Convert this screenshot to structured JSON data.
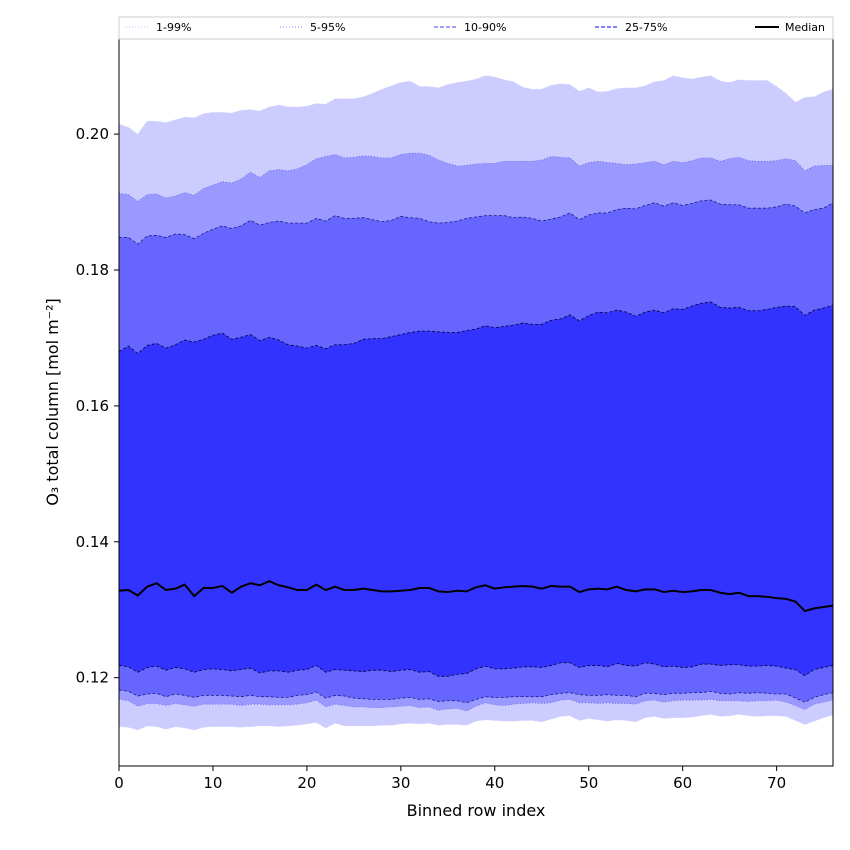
{
  "chart_data": {
    "type": "area",
    "title": "",
    "xlabel": "Binned row index",
    "ylabel": "O₃ total column [mol m⁻²]",
    "xlim": [
      0,
      76
    ],
    "ylim": [
      0.107,
      0.214
    ],
    "xticks": [
      0,
      10,
      20,
      30,
      40,
      50,
      60,
      70
    ],
    "yticks": [
      0.12,
      0.14,
      0.16,
      0.18,
      0.2
    ],
    "ytick_labels": [
      "0.12",
      "0.14",
      "0.16",
      "0.18",
      "0.20"
    ],
    "grid": false,
    "legend_position": "top",
    "legend": [
      {
        "label": "1-99%",
        "color": "#ccccff",
        "style": "dotted"
      },
      {
        "label": "5-95%",
        "color": "#9999ff",
        "style": "dotted"
      },
      {
        "label": "10-90%",
        "color": "#6666ff",
        "style": "dashed"
      },
      {
        "label": "25-75%",
        "color": "#3333ff",
        "style": "dashed"
      },
      {
        "label": "Median",
        "color": "#000000",
        "style": "solid"
      }
    ],
    "x": [
      0,
      1,
      2,
      3,
      4,
      5,
      6,
      7,
      8,
      9,
      10,
      11,
      12,
      13,
      14,
      15,
      16,
      17,
      18,
      19,
      20,
      21,
      22,
      23,
      24,
      25,
      26,
      27,
      28,
      29,
      30,
      31,
      32,
      33,
      34,
      35,
      36,
      37,
      38,
      39,
      40,
      41,
      42,
      43,
      44,
      45,
      46,
      47,
      48,
      49,
      50,
      51,
      52,
      53,
      54,
      55,
      56,
      57,
      58,
      59,
      60,
      61,
      62,
      63,
      64,
      65,
      66,
      67,
      68,
      69,
      70,
      71,
      72,
      73,
      74,
      75,
      76
    ],
    "bands": [
      {
        "name": "1-99%",
        "fill": "#ccccff",
        "upper": [
          0.2015,
          0.201,
          0.2,
          0.2019,
          0.2019,
          0.2017,
          0.2021,
          0.2025,
          0.2024,
          0.203,
          0.2032,
          0.2032,
          0.2031,
          0.2035,
          0.2036,
          0.2034,
          0.204,
          0.2043,
          0.204,
          0.204,
          0.2041,
          0.2045,
          0.2044,
          0.2052,
          0.2052,
          0.2052,
          0.2055,
          0.206,
          0.2066,
          0.2071,
          0.2076,
          0.2078,
          0.207,
          0.207,
          0.2068,
          0.2073,
          0.2076,
          0.2078,
          0.2081,
          0.2086,
          0.2084,
          0.208,
          0.2077,
          0.2069,
          0.2066,
          0.2066,
          0.2072,
          0.2074,
          0.2073,
          0.2063,
          0.2068,
          0.2062,
          0.2063,
          0.2067,
          0.2068,
          0.2068,
          0.2071,
          0.2077,
          0.2079,
          0.2086,
          0.2083,
          0.2081,
          0.2084,
          0.2086,
          0.2078,
          0.2076,
          0.208,
          0.2079,
          0.2079,
          0.2079,
          0.207,
          0.206,
          0.2047,
          0.2054,
          0.2055,
          0.2062,
          0.2066
        ],
        "lower": [
          0.1128,
          0.1127,
          0.1123,
          0.1129,
          0.1128,
          0.1124,
          0.1128,
          0.1126,
          0.1123,
          0.1127,
          0.1128,
          0.1128,
          0.1128,
          0.1127,
          0.1128,
          0.1129,
          0.1129,
          0.1128,
          0.1129,
          0.113,
          0.1132,
          0.1134,
          0.1126,
          0.1133,
          0.1129,
          0.1129,
          0.1129,
          0.1129,
          0.113,
          0.113,
          0.1132,
          0.1133,
          0.1132,
          0.1133,
          0.113,
          0.1131,
          0.1131,
          0.113,
          0.1136,
          0.1138,
          0.1137,
          0.1136,
          0.1136,
          0.1137,
          0.1137,
          0.1135,
          0.1139,
          0.1143,
          0.1144,
          0.1137,
          0.114,
          0.1138,
          0.1136,
          0.1138,
          0.1137,
          0.1135,
          0.1141,
          0.1143,
          0.114,
          0.1141,
          0.1141,
          0.1142,
          0.1144,
          0.1146,
          0.1143,
          0.1144,
          0.1146,
          0.1144,
          0.1143,
          0.1144,
          0.1144,
          0.1143,
          0.1137,
          0.1131,
          0.1136,
          0.1141,
          0.1145
        ]
      },
      {
        "name": "5-95%",
        "fill": "#9999ff",
        "upper": [
          0.1913,
          0.1911,
          0.1901,
          0.1911,
          0.1912,
          0.1906,
          0.1909,
          0.1914,
          0.191,
          0.192,
          0.1925,
          0.193,
          0.1928,
          0.1934,
          0.1944,
          0.1936,
          0.1946,
          0.1948,
          0.1946,
          0.1949,
          0.1955,
          0.1964,
          0.1967,
          0.197,
          0.1965,
          0.1966,
          0.1968,
          0.1967,
          0.1965,
          0.1965,
          0.197,
          0.1972,
          0.1972,
          0.1969,
          0.1962,
          0.1957,
          0.1953,
          0.1954,
          0.1956,
          0.1957,
          0.1957,
          0.196,
          0.196,
          0.196,
          0.196,
          0.1962,
          0.1967,
          0.1966,
          0.1965,
          0.1953,
          0.1958,
          0.196,
          0.1958,
          0.1957,
          0.1955,
          0.1956,
          0.1958,
          0.196,
          0.1955,
          0.196,
          0.1958,
          0.1961,
          0.1965,
          0.1965,
          0.196,
          0.1964,
          0.1966,
          0.1961,
          0.196,
          0.196,
          0.1961,
          0.1964,
          0.1961,
          0.1946,
          0.1953,
          0.1954,
          0.1954
        ],
        "lower": [
          0.1168,
          0.1166,
          0.1158,
          0.1162,
          0.1162,
          0.1159,
          0.1162,
          0.116,
          0.1158,
          0.1161,
          0.1161,
          0.1161,
          0.1161,
          0.1159,
          0.1161,
          0.1161,
          0.116,
          0.116,
          0.116,
          0.1161,
          0.1163,
          0.1167,
          0.1157,
          0.1161,
          0.1159,
          0.1157,
          0.1157,
          0.1156,
          0.1156,
          0.1157,
          0.1158,
          0.1159,
          0.1156,
          0.1157,
          0.1152,
          0.1154,
          0.1155,
          0.1151,
          0.1158,
          0.1163,
          0.116,
          0.1159,
          0.1161,
          0.1162,
          0.1163,
          0.1162,
          0.1163,
          0.1167,
          0.1168,
          0.1163,
          0.1163,
          0.1162,
          0.1163,
          0.1162,
          0.1162,
          0.1161,
          0.1166,
          0.1167,
          0.1164,
          0.1166,
          0.1167,
          0.1167,
          0.1167,
          0.1168,
          0.1166,
          0.1166,
          0.1166,
          0.1165,
          0.1166,
          0.1166,
          0.1167,
          0.1164,
          0.1159,
          0.1153,
          0.1161,
          0.1164,
          0.1167
        ]
      },
      {
        "name": "10-90%",
        "fill": "#6666ff",
        "upper": [
          0.1848,
          0.1848,
          0.1838,
          0.185,
          0.1851,
          0.1848,
          0.1853,
          0.1852,
          0.1846,
          0.1854,
          0.186,
          0.1865,
          0.1861,
          0.1865,
          0.1873,
          0.1866,
          0.187,
          0.1872,
          0.1869,
          0.1869,
          0.1869,
          0.1876,
          0.1872,
          0.188,
          0.1876,
          0.1876,
          0.1877,
          0.1874,
          0.1871,
          0.1873,
          0.1879,
          0.1877,
          0.1876,
          0.1871,
          0.1869,
          0.187,
          0.1872,
          0.1876,
          0.1878,
          0.188,
          0.188,
          0.188,
          0.1877,
          0.1878,
          0.1876,
          0.1872,
          0.1875,
          0.1878,
          0.1884,
          0.1874,
          0.1881,
          0.1884,
          0.1884,
          0.1889,
          0.1891,
          0.189,
          0.1895,
          0.1899,
          0.1894,
          0.1899,
          0.1895,
          0.1898,
          0.1902,
          0.1903,
          0.1897,
          0.1896,
          0.1896,
          0.1891,
          0.1891,
          0.1891,
          0.1893,
          0.1897,
          0.1894,
          0.1884,
          0.1889,
          0.1891,
          0.1899
        ],
        "lower": [
          0.1182,
          0.118,
          0.1173,
          0.1176,
          0.1177,
          0.1172,
          0.1176,
          0.1174,
          0.1171,
          0.1174,
          0.1174,
          0.1174,
          0.1173,
          0.1172,
          0.1174,
          0.1172,
          0.1172,
          0.1171,
          0.1171,
          0.1174,
          0.1175,
          0.1179,
          0.117,
          0.1174,
          0.1173,
          0.117,
          0.1169,
          0.1168,
          0.1168,
          0.1168,
          0.117,
          0.1171,
          0.1168,
          0.1169,
          0.1165,
          0.1166,
          0.1166,
          0.1163,
          0.1168,
          0.1172,
          0.1171,
          0.1171,
          0.1172,
          0.1172,
          0.1172,
          0.1172,
          0.1175,
          0.1177,
          0.1178,
          0.1175,
          0.1174,
          0.1174,
          0.1175,
          0.1174,
          0.1174,
          0.1172,
          0.1177,
          0.1177,
          0.1175,
          0.1177,
          0.1177,
          0.1178,
          0.1178,
          0.118,
          0.1177,
          0.1176,
          0.1178,
          0.1177,
          0.1178,
          0.1177,
          0.1176,
          0.1176,
          0.117,
          0.1164,
          0.1171,
          0.1175,
          0.1178
        ]
      },
      {
        "name": "25-75%",
        "fill": "#3333ff",
        "upper": [
          0.168,
          0.1688,
          0.1677,
          0.1689,
          0.1692,
          0.1685,
          0.169,
          0.1697,
          0.1694,
          0.1698,
          0.1704,
          0.1707,
          0.1698,
          0.1701,
          0.1705,
          0.1696,
          0.1701,
          0.1697,
          0.169,
          0.1688,
          0.1685,
          0.1689,
          0.1684,
          0.169,
          0.169,
          0.1692,
          0.1698,
          0.1699,
          0.1699,
          0.1702,
          0.1705,
          0.1708,
          0.171,
          0.171,
          0.1709,
          0.1708,
          0.1708,
          0.1711,
          0.1713,
          0.1718,
          0.1715,
          0.1717,
          0.1719,
          0.1722,
          0.172,
          0.172,
          0.1726,
          0.1728,
          0.1734,
          0.1725,
          0.1733,
          0.1738,
          0.1737,
          0.1741,
          0.1738,
          0.1732,
          0.1738,
          0.1741,
          0.1737,
          0.1743,
          0.1742,
          0.1747,
          0.1751,
          0.1753,
          0.1745,
          0.1744,
          0.1745,
          0.174,
          0.174,
          0.1742,
          0.1745,
          0.1747,
          0.1746,
          0.1733,
          0.1741,
          0.1744,
          0.1748
        ],
        "lower": [
          0.1218,
          0.1216,
          0.1208,
          0.1215,
          0.1217,
          0.1211,
          0.1215,
          0.1213,
          0.1208,
          0.1212,
          0.1213,
          0.1212,
          0.121,
          0.1212,
          0.1214,
          0.1207,
          0.121,
          0.121,
          0.1208,
          0.1211,
          0.1212,
          0.1218,
          0.1208,
          0.1212,
          0.1211,
          0.121,
          0.1209,
          0.1211,
          0.1211,
          0.1209,
          0.1211,
          0.1212,
          0.1208,
          0.1209,
          0.1202,
          0.1202,
          0.1205,
          0.1206,
          0.1213,
          0.1217,
          0.1213,
          0.1213,
          0.1214,
          0.1216,
          0.1216,
          0.1215,
          0.1218,
          0.1222,
          0.1222,
          0.1215,
          0.1218,
          0.1218,
          0.1216,
          0.1221,
          0.1218,
          0.1217,
          0.1222,
          0.122,
          0.1216,
          0.1217,
          0.1215,
          0.1216,
          0.122,
          0.122,
          0.1218,
          0.1219,
          0.1219,
          0.1217,
          0.1217,
          0.1218,
          0.1217,
          0.1214,
          0.1212,
          0.1203,
          0.1212,
          0.1215,
          0.1218
        ]
      }
    ],
    "series": [
      {
        "name": "Median",
        "color": "#000000",
        "values": [
          0.1328,
          0.1329,
          0.1321,
          0.1334,
          0.1339,
          0.1329,
          0.1331,
          0.1337,
          0.132,
          0.1332,
          0.1332,
          0.1335,
          0.1325,
          0.1334,
          0.1339,
          0.1336,
          0.1342,
          0.1336,
          0.1333,
          0.1329,
          0.1329,
          0.1337,
          0.1329,
          0.1334,
          0.1329,
          0.1329,
          0.1331,
          0.1329,
          0.1327,
          0.1327,
          0.1328,
          0.1329,
          0.1332,
          0.1332,
          0.1327,
          0.1326,
          0.1328,
          0.1327,
          0.1333,
          0.1336,
          0.1331,
          0.1333,
          0.1334,
          0.1335,
          0.1334,
          0.1331,
          0.1335,
          0.1334,
          0.1334,
          0.1326,
          0.133,
          0.1331,
          0.133,
          0.1334,
          0.1329,
          0.1327,
          0.133,
          0.133,
          0.1326,
          0.1328,
          0.1326,
          0.1327,
          0.1329,
          0.1329,
          0.1325,
          0.1323,
          0.1325,
          0.132,
          0.132,
          0.1319,
          0.1317,
          0.1316,
          0.1312,
          0.1298,
          0.1302,
          0.1304,
          0.1306
        ]
      }
    ]
  }
}
